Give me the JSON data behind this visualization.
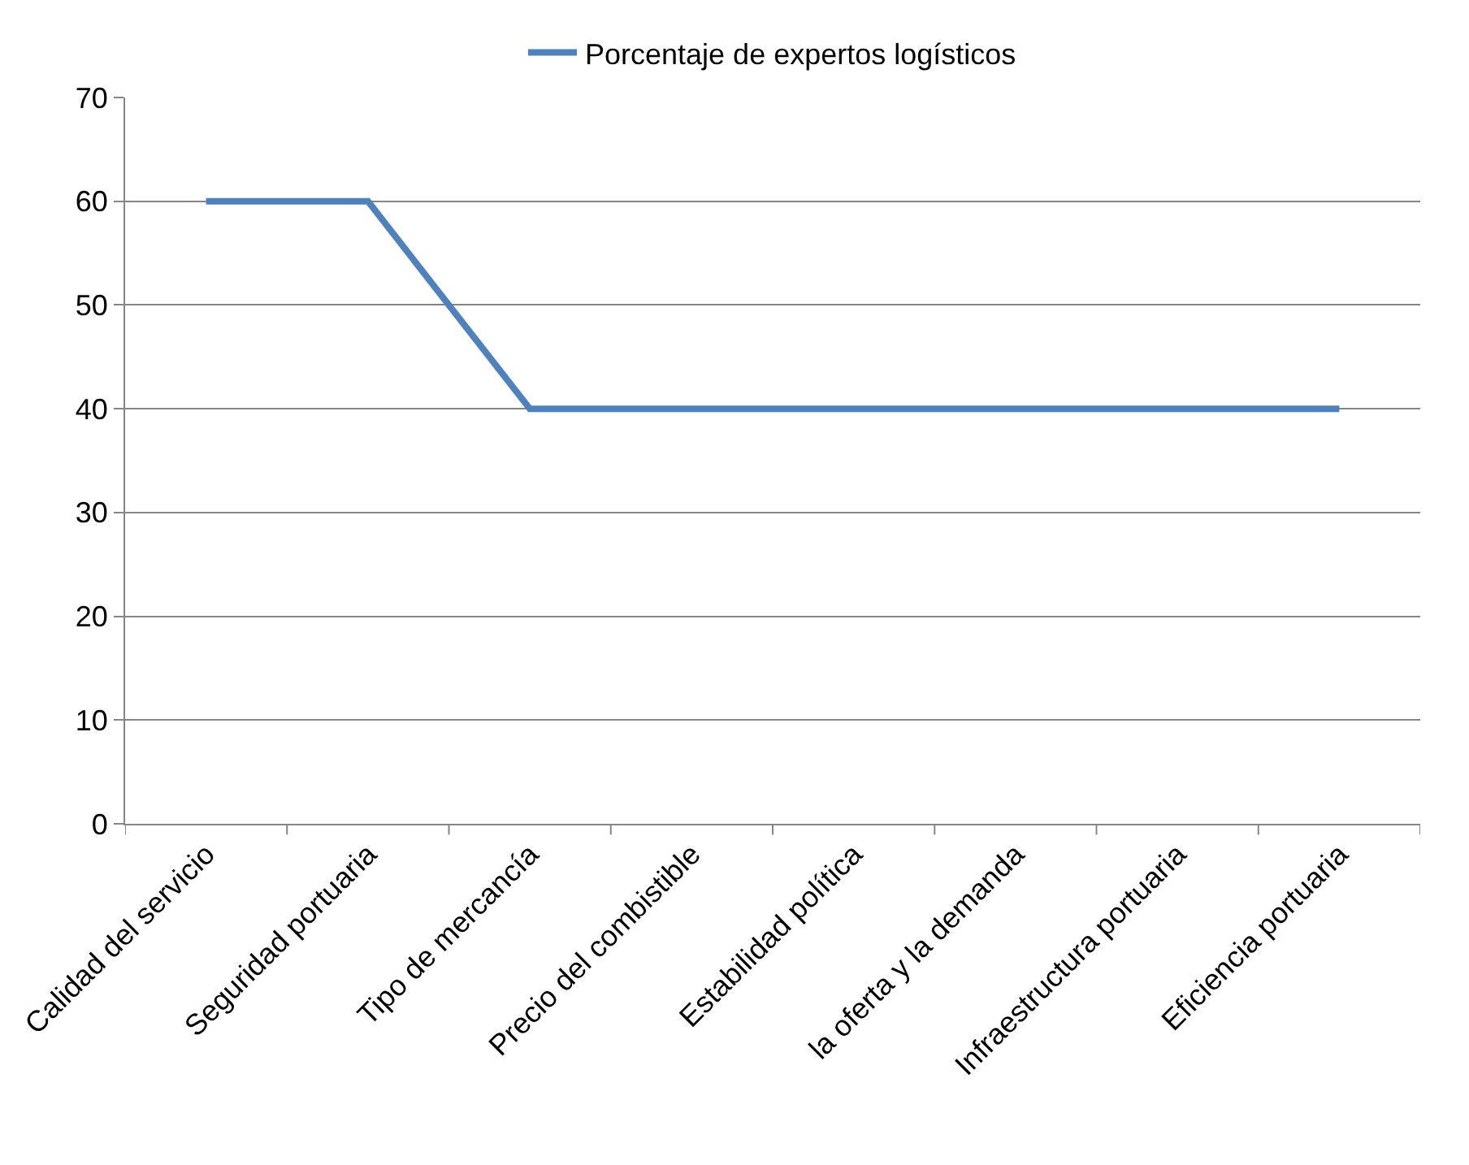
{
  "chart_data": {
    "type": "line",
    "categories": [
      "Calidad del servicio",
      "Seguridad portuaria",
      "Tipo de mercancía",
      "Precio del combistible",
      "Estabilidad política",
      "la oferta y la demanda",
      "Infraestructura portuaria",
      "Eficiencia portuaria"
    ],
    "series": [
      {
        "name": "Porcentaje de expertos logísticos",
        "color": "#4f81bd",
        "values": [
          60,
          60,
          40,
          40,
          40,
          40,
          40,
          40
        ]
      }
    ],
    "ylim": [
      0,
      70
    ],
    "yticks": [
      0,
      10,
      20,
      30,
      40,
      50,
      60,
      70
    ],
    "grid": "y",
    "legend": "top",
    "marker": "none",
    "line_style": "solid"
  }
}
